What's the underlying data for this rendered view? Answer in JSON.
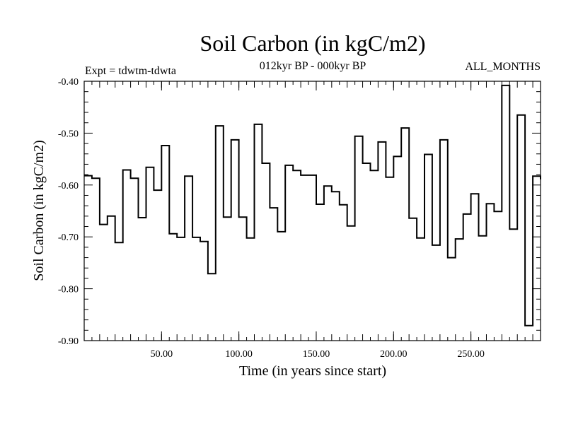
{
  "chart_data": {
    "type": "line",
    "step": true,
    "title": "Soil Carbon (in kgC/m2)",
    "subtitle": "012kyr BP - 000kyr BP",
    "left_label": "Expt = tdwtm-tdwta",
    "right_label": "ALL_MONTHS",
    "xlabel": "Time (in years since start)",
    "ylabel": "Soil Carbon (in kgC/m2)",
    "xlim": [
      0,
      295
    ],
    "ylim": [
      -0.9,
      -0.4
    ],
    "x_ticks": [
      50,
      100,
      150,
      200,
      250
    ],
    "x_tick_labels": [
      "50.00",
      "100.00",
      "150.00",
      "200.00",
      "250.00"
    ],
    "y_ticks": [
      -0.9,
      -0.8,
      -0.7,
      -0.6,
      -0.5,
      -0.4
    ],
    "y_tick_labels": [
      "-0.90",
      "-0.80",
      "-0.70",
      "-0.60",
      "-0.50",
      "-0.40"
    ],
    "series": [
      {
        "name": "Soil Carbon",
        "x": [
          0,
          5,
          10,
          15,
          20,
          25,
          30,
          35,
          40,
          45,
          50,
          55,
          60,
          65,
          70,
          75,
          80,
          85,
          90,
          95,
          100,
          105,
          110,
          115,
          120,
          125,
          130,
          135,
          140,
          145,
          150,
          155,
          160,
          165,
          170,
          175,
          180,
          185,
          190,
          195,
          200,
          205,
          210,
          215,
          220,
          225,
          230,
          235,
          240,
          245,
          250,
          255,
          260,
          265,
          270,
          275,
          280,
          285,
          290,
          295
        ],
        "values": [
          -0.582,
          -0.587,
          -0.676,
          -0.66,
          -0.711,
          -0.571,
          -0.587,
          -0.663,
          -0.566,
          -0.61,
          -0.524,
          -0.694,
          -0.701,
          -0.583,
          -0.701,
          -0.709,
          -0.771,
          -0.486,
          -0.662,
          -0.513,
          -0.662,
          -0.702,
          -0.483,
          -0.558,
          -0.644,
          -0.69,
          -0.562,
          -0.572,
          -0.581,
          -0.581,
          -0.637,
          -0.602,
          -0.613,
          -0.638,
          -0.679,
          -0.506,
          -0.558,
          -0.572,
          -0.517,
          -0.585,
          -0.545,
          -0.49,
          -0.664,
          -0.702,
          -0.541,
          -0.716,
          -0.513,
          -0.74,
          -0.704,
          -0.656,
          -0.617,
          -0.698,
          -0.636,
          -0.651,
          -0.408,
          -0.685,
          -0.465,
          -0.871,
          -0.583,
          -0.589
        ]
      }
    ]
  }
}
